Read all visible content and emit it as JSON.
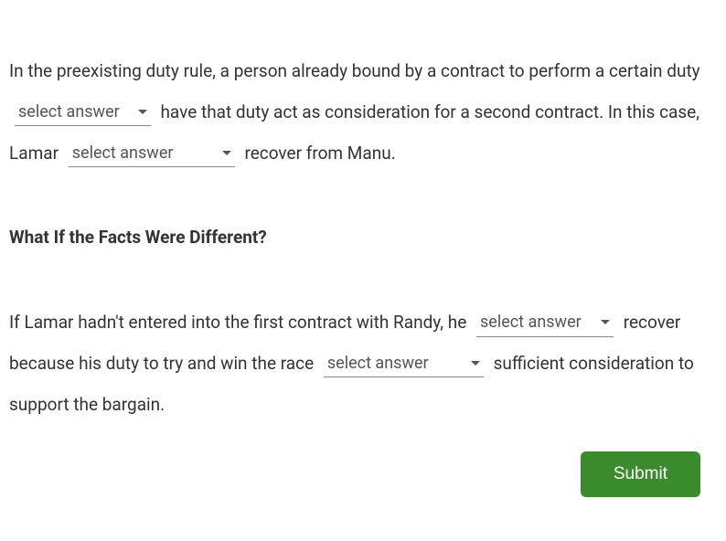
{
  "placeholder": "select answer",
  "para1_part1": "In the preexisting duty rule, a person already bound by a contract to perform a certain duty",
  "para1_part2": "have that duty act as consideration for a second contract. In this case, Lamar",
  "para1_part3": "recover from Manu.",
  "heading": "What If the Facts Were Different?",
  "para2_part1": "If Lamar hadn't entered into the first contract with Randy, he",
  "para2_part2": "recover because his duty to try and win the race",
  "para2_part3": "sufficient consideration to support the bargain.",
  "submit_label": "Submit",
  "colors": {
    "text": "#333333",
    "dropdown_text": "#555555",
    "dropdown_border": "#888888",
    "button_bg": "#398b2b",
    "button_text": "#ffffff",
    "background": "#ffffff"
  }
}
